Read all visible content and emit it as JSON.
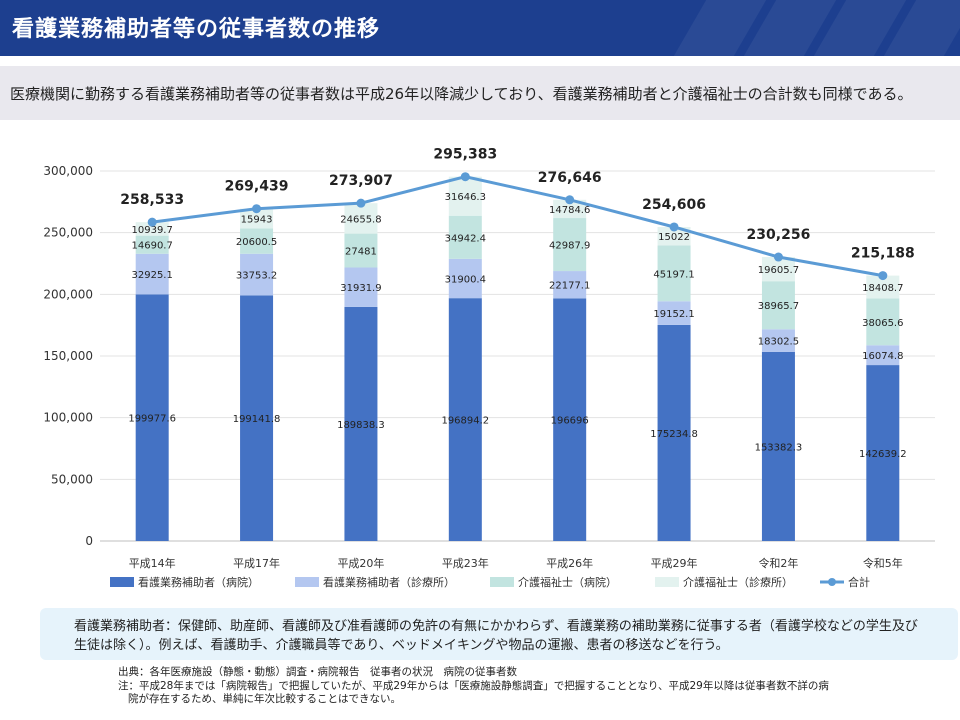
{
  "header": {
    "title": "看護業務補助者等の従事者数の推移"
  },
  "summary": "医療機関に勤務する看護業務補助者等の従事者数は平成26年以降減少しており、看護業務補助者と介護福祉士の合計数も同様である。",
  "chart_data": {
    "type": "bar",
    "stacked": true,
    "categories": [
      "平成14年",
      "平成17年",
      "平成20年",
      "平成23年",
      "平成26年",
      "平成29年",
      "令和2年",
      "令和5年"
    ],
    "ylim": [
      0,
      300000
    ],
    "yticks": [
      "0",
      "50,000",
      "100,000",
      "150,000",
      "200,000",
      "250,000",
      "300,000"
    ],
    "ytick_values": [
      0,
      50000,
      100000,
      150000,
      200000,
      250000,
      300000
    ],
    "grid": true,
    "legend_position": "bottom",
    "series": [
      {
        "name": "看護業務補助者（病院）",
        "color": "#4472c4",
        "values": [
          199977.6,
          199141.8,
          189838.3,
          196894.2,
          196696,
          175234.8,
          153382.3,
          142639.2
        ],
        "labels": [
          "199977.6",
          "199141.8",
          "189838.3",
          "196894.2",
          "196696",
          "175234.8",
          "153382.3",
          "142639.2"
        ]
      },
      {
        "name": "看護業務補助者（診療所）",
        "color": "#b4c7f0",
        "values": [
          32925.1,
          33753.2,
          31931.9,
          31900.4,
          22177.1,
          19152.1,
          18302.5,
          16074.8
        ],
        "labels": [
          "32925.1",
          "33753.2",
          "31931.9",
          "31900.4",
          "22177.1",
          "19152.1",
          "18302.5",
          "16074.8"
        ]
      },
      {
        "name": "介護福祉士（病院）",
        "color": "#c2e4e0",
        "values": [
          14690.7,
          20600.5,
          27481,
          34942.4,
          42987.9,
          45197.1,
          38965.7,
          38065.6
        ],
        "labels": [
          "14690.7",
          "20600.5",
          "27481",
          "34942.4",
          "42987.9",
          "45197.1",
          "38965.7",
          "38065.6"
        ]
      },
      {
        "name": "介護福祉士（診療所）",
        "color": "#e3f2ef",
        "values": [
          10939.7,
          15943,
          24655.8,
          31646.3,
          14784.6,
          15022,
          19605.7,
          18408.7
        ],
        "labels": [
          "10939.7",
          "15943",
          "24655.8",
          "31646.3",
          "14784.6",
          "15022",
          "19605.7",
          "18408.7"
        ]
      }
    ],
    "total": {
      "name": "合計",
      "color": "#5b9bd5",
      "type": "line",
      "values": [
        258533,
        269439,
        273907,
        295383,
        276646,
        254606,
        230256,
        215188
      ],
      "labels": [
        "258,533",
        "269,439",
        "273,907",
        "295,383",
        "276,646",
        "254,606",
        "230,256",
        "215,188"
      ]
    }
  },
  "definition": {
    "lines": [
      "看護業務補助者：保健師、助産師、看護師及び准看護師の免許の有無にかかわらず、看護業務の補助業務に従事する者（看護学校などの学生及び",
      "生徒は除く）。例えば、看護助手、介護職員等であり、ベッドメイキングや物品の運搬、患者の移送などを行う。"
    ]
  },
  "notes": {
    "source": "出典：各年医療施設（静態・動態）調査・病院報告　従事者の状況　病院の従事者数",
    "note_line1": "注：平成28年までは「病院報告」で把握していたが、平成29年からは「医療施設静態調査」で把握することとなり、平成29年以降は従事者数不詳の病",
    "note_line2": "院が存在するため、単純に年次比較することはできない。"
  }
}
